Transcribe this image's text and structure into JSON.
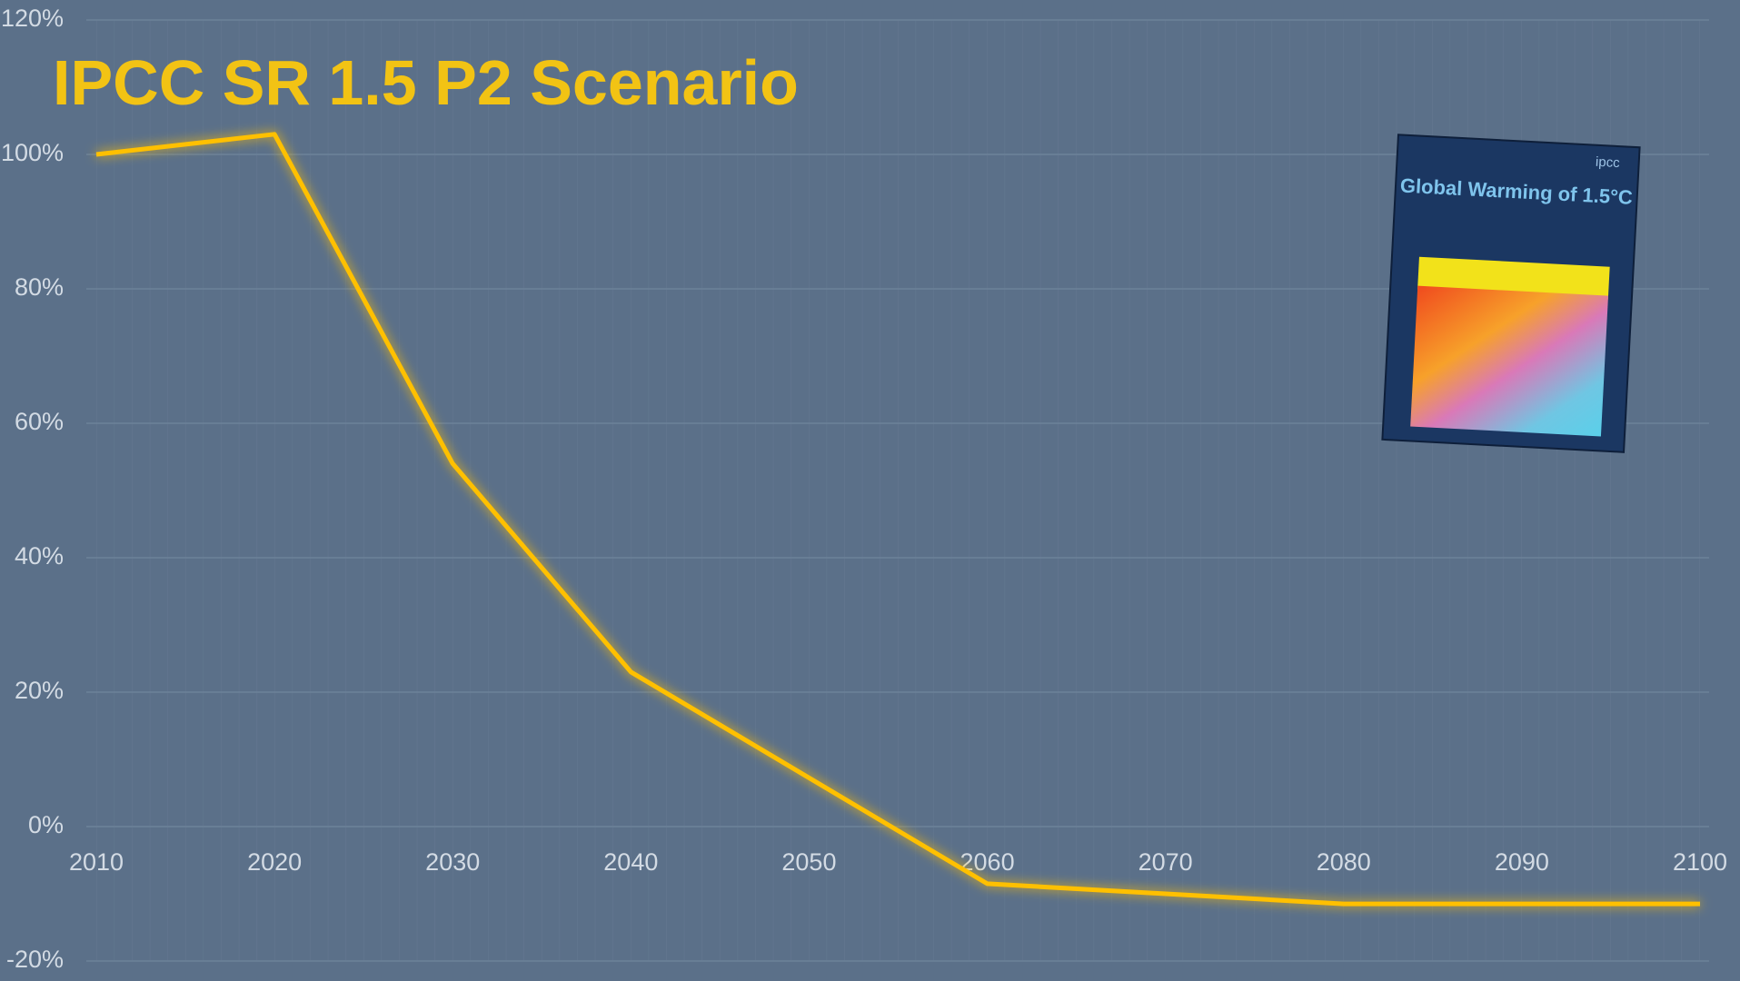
{
  "chart_data": {
    "type": "line",
    "title": "IPCC SR 1.5 P2 Scenario",
    "x": [
      2010,
      2020,
      2030,
      2040,
      2060,
      2080,
      2100
    ],
    "series": [
      {
        "color": "#FFC000",
        "values": [
          100,
          103,
          54,
          23,
          -8.5,
          -11.5,
          -11.5
        ]
      }
    ],
    "xlim": [
      2010,
      2100
    ],
    "xticks": [
      2010,
      2020,
      2030,
      2040,
      2050,
      2060,
      2070,
      2080,
      2090,
      2100
    ],
    "ylim": [
      -20,
      120
    ],
    "yticks": [
      {
        "value": -20,
        "label": "-20%"
      },
      {
        "value": 0,
        "label": "0%"
      },
      {
        "value": 20,
        "label": "20%"
      },
      {
        "value": 40,
        "label": "40%"
      },
      {
        "value": 60,
        "label": "60%"
      },
      {
        "value": 80,
        "label": "80%"
      },
      {
        "value": 100,
        "label": "100%"
      },
      {
        "value": 120,
        "label": "120%"
      }
    ],
    "grid": true,
    "cover": {
      "brand": "ipcc",
      "title": "Global Warming of 1.5°C"
    }
  }
}
